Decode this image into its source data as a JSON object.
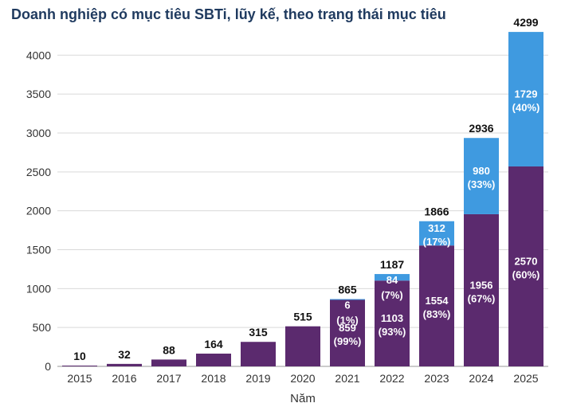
{
  "chart_data": {
    "type": "bar",
    "stacked": true,
    "title": "Doanh nghiệp có mục tiêu SBTi, lũy kế, theo trạng thái mục tiêu",
    "xlabel": "Năm",
    "ylabel": "",
    "ylim": [
      0,
      4300
    ],
    "yticks": [
      0,
      500,
      1000,
      1500,
      2000,
      2500,
      3000,
      3500,
      4000
    ],
    "grid": true,
    "categories": [
      "2015",
      "2016",
      "2017",
      "2018",
      "2019",
      "2020",
      "2021",
      "2022",
      "2023",
      "2024",
      "2025"
    ],
    "totals": [
      10,
      32,
      88,
      164,
      315,
      515,
      865,
      1187,
      1866,
      2936,
      4299
    ],
    "series": [
      {
        "color": "#5b2a6e",
        "values": [
          10,
          32,
          88,
          164,
          315,
          515,
          859,
          1103,
          1554,
          1956,
          2570
        ],
        "labels": [
          null,
          null,
          null,
          null,
          null,
          null,
          "859",
          "1103",
          "1554",
          "1956",
          "2570"
        ],
        "shares": [
          null,
          null,
          null,
          null,
          null,
          null,
          "(99%)",
          "(93%)",
          "(83%)",
          "(67%)",
          "(60%)"
        ]
      },
      {
        "color": "#3f9ae0",
        "values": [
          0,
          0,
          0,
          0,
          0,
          0,
          6,
          84,
          312,
          980,
          1729
        ],
        "labels": [
          null,
          null,
          null,
          null,
          null,
          null,
          "6",
          "84",
          "312",
          "980",
          "1729"
        ],
        "shares": [
          null,
          null,
          null,
          null,
          null,
          null,
          "(1%)",
          "(7%)",
          "(17%)",
          "(33%)",
          "(40%)"
        ]
      }
    ]
  }
}
